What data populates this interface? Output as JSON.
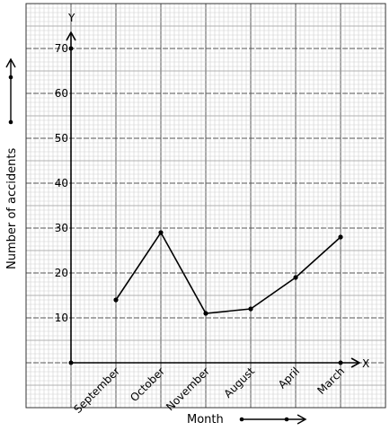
{
  "chart_data": {
    "type": "line",
    "categories": [
      "September",
      "October",
      "November",
      "August",
      "April",
      "March"
    ],
    "values": [
      14,
      29,
      11,
      12,
      19,
      28
    ],
    "title": "",
    "xlabel": "Month",
    "ylabel": "Number of accidents",
    "x_axis_letter": "X",
    "y_axis_letter": "Y",
    "y_ticks": [
      10,
      20,
      30,
      40,
      50,
      60,
      70
    ],
    "ylim": [
      0,
      70
    ],
    "grid": true,
    "colors": {
      "line": "#000000",
      "grid_fine": "#cfcfcf",
      "grid_major": "#555555"
    }
  }
}
